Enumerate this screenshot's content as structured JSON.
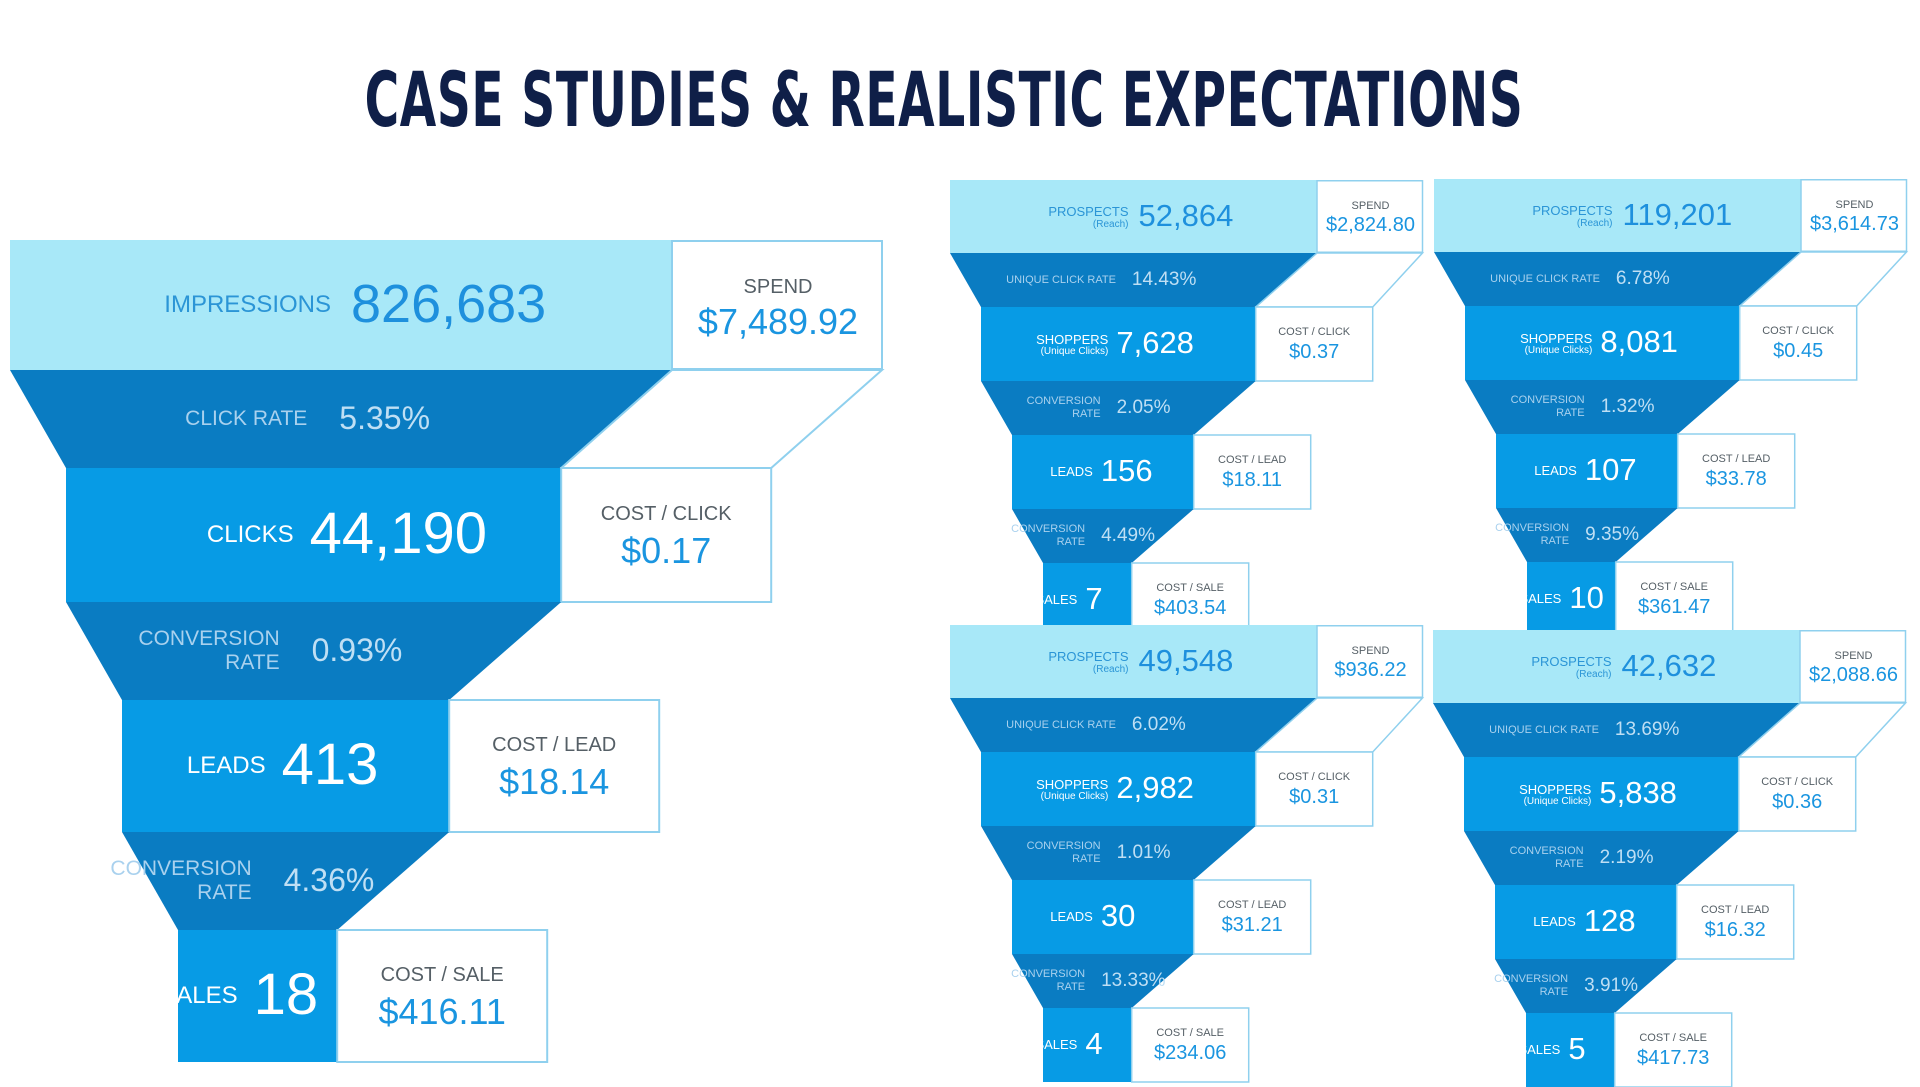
{
  "title": "CASE STUDIES & REALISTIC EXPECTATIONS",
  "colors": {
    "top": "#a8e8f8",
    "rate": "#0a7cc2",
    "stage": "#079be5",
    "box_border": "#8fd0ee",
    "title": "#0f1f48"
  },
  "funnels": [
    {
      "id": "main",
      "top": {
        "label": "IMPRESSIONS",
        "sub": "",
        "value": "826,683",
        "box_label": "SPEND",
        "box_value": "$7,489.92"
      },
      "rows": [
        {
          "rate_label": [
            "CLICK RATE"
          ],
          "rate_value": "5.35%",
          "label": "CLICKS",
          "sub": "",
          "value": "44,190",
          "box_label": "COST / CLICK",
          "box_value": "$0.17"
        },
        {
          "rate_label": [
            "CONVERSION",
            "RATE"
          ],
          "rate_value": "0.93%",
          "label": "LEADS",
          "sub": "",
          "value": "413",
          "box_label": "COST / LEAD",
          "box_value": "$18.14"
        },
        {
          "rate_label": [
            "CONVERSION",
            "RATE"
          ],
          "rate_value": "4.36%",
          "label": "SALES",
          "sub": "",
          "value": "18",
          "box_label": "COST / SALE",
          "box_value": "$416.11"
        }
      ]
    },
    {
      "id": "case-1",
      "top": {
        "label": "PROSPECTS",
        "sub": "(Reach)",
        "value": "52,864",
        "box_label": "SPEND",
        "box_value": "$2,824.80"
      },
      "rows": [
        {
          "rate_label": [
            "UNIQUE CLICK RATE"
          ],
          "rate_value": "14.43%",
          "label": "SHOPPERS",
          "sub": "(Unique Clicks)",
          "value": "7,628",
          "box_label": "COST / CLICK",
          "box_value": "$0.37"
        },
        {
          "rate_label": [
            "CONVERSION",
            "RATE"
          ],
          "rate_value": "2.05%",
          "label": "LEADS",
          "sub": "",
          "value": "156",
          "box_label": "COST / LEAD",
          "box_value": "$18.11"
        },
        {
          "rate_label": [
            "CONVERSION",
            "RATE"
          ],
          "rate_value": "4.49%",
          "label": "SALES",
          "sub": "",
          "value": "7",
          "box_label": "COST / SALE",
          "box_value": "$403.54"
        }
      ]
    },
    {
      "id": "case-2",
      "top": {
        "label": "PROSPECTS",
        "sub": "(Reach)",
        "value": "119,201",
        "box_label": "SPEND",
        "box_value": "$3,614.73"
      },
      "rows": [
        {
          "rate_label": [
            "UNIQUE CLICK RATE"
          ],
          "rate_value": "6.78%",
          "label": "SHOPPERS",
          "sub": "(Unique Clicks)",
          "value": "8,081",
          "box_label": "COST / CLICK",
          "box_value": "$0.45"
        },
        {
          "rate_label": [
            "CONVERSION",
            "RATE"
          ],
          "rate_value": "1.32%",
          "label": "LEADS",
          "sub": "",
          "value": "107",
          "box_label": "COST / LEAD",
          "box_value": "$33.78"
        },
        {
          "rate_label": [
            "CONVERSION",
            "RATE"
          ],
          "rate_value": "9.35%",
          "label": "SALES",
          "sub": "",
          "value": "10",
          "box_label": "COST / SALE",
          "box_value": "$361.47"
        }
      ]
    },
    {
      "id": "case-3",
      "top": {
        "label": "PROSPECTS",
        "sub": "(Reach)",
        "value": "49,548",
        "box_label": "SPEND",
        "box_value": "$936.22"
      },
      "rows": [
        {
          "rate_label": [
            "UNIQUE CLICK RATE"
          ],
          "rate_value": "6.02%",
          "label": "SHOPPERS",
          "sub": "(Unique Clicks)",
          "value": "2,982",
          "box_label": "COST / CLICK",
          "box_value": "$0.31"
        },
        {
          "rate_label": [
            "CONVERSION",
            "RATE"
          ],
          "rate_value": "1.01%",
          "label": "LEADS",
          "sub": "",
          "value": "30",
          "box_label": "COST / LEAD",
          "box_value": "$31.21"
        },
        {
          "rate_label": [
            "CONVERSION",
            "RATE"
          ],
          "rate_value": "13.33%",
          "label": "SALES",
          "sub": "",
          "value": "4",
          "box_label": "COST / SALE",
          "box_value": "$234.06"
        }
      ]
    },
    {
      "id": "case-4",
      "top": {
        "label": "PROSPECTS",
        "sub": "(Reach)",
        "value": "42,632",
        "box_label": "SPEND",
        "box_value": "$2,088.66"
      },
      "rows": [
        {
          "rate_label": [
            "UNIQUE CLICK RATE"
          ],
          "rate_value": "13.69%",
          "label": "SHOPPERS",
          "sub": "(Unique Clicks)",
          "value": "5,838",
          "box_label": "COST / CLICK",
          "box_value": "$0.36"
        },
        {
          "rate_label": [
            "CONVERSION",
            "RATE"
          ],
          "rate_value": "2.19%",
          "label": "LEADS",
          "sub": "",
          "value": "128",
          "box_label": "COST / LEAD",
          "box_value": "$16.32"
        },
        {
          "rate_label": [
            "CONVERSION",
            "RATE"
          ],
          "rate_value": "3.91%",
          "label": "SALES",
          "sub": "",
          "value": "5",
          "box_label": "COST / SALE",
          "box_value": "$417.73"
        }
      ]
    }
  ]
}
